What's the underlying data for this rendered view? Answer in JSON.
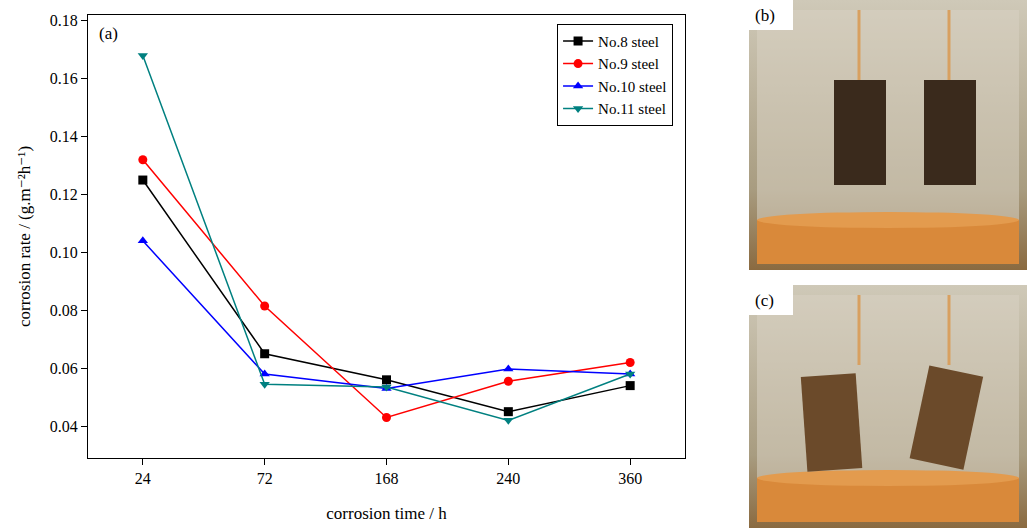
{
  "chart_data": {
    "type": "line",
    "x_label": "corrosion time / h",
    "y_label": "corrosion rate / (g.m⁻²h⁻¹)",
    "categories": [
      "24",
      "72",
      "168",
      "240",
      "360"
    ],
    "series": [
      {
        "name": "No.8 steel",
        "color": "#000000",
        "marker": "square",
        "values": [
          0.125,
          0.065,
          0.056,
          0.045,
          0.054
        ]
      },
      {
        "name": "No.9 steel",
        "color": "#ff0000",
        "marker": "circle",
        "values": [
          0.132,
          0.0815,
          0.043,
          0.0555,
          0.062
        ]
      },
      {
        "name": "No.10 steel",
        "color": "#0000ff",
        "marker": "triangle-up",
        "values": [
          0.104,
          0.058,
          0.053,
          0.0597,
          0.058
        ]
      },
      {
        "name": "No.11 steel",
        "color": "#008080",
        "marker": "triangle-down",
        "values": [
          0.168,
          0.0545,
          0.0535,
          0.042,
          0.058
        ]
      }
    ],
    "ylim": [
      0.029,
      0.182
    ],
    "yticks": [
      0.04,
      0.06,
      0.08,
      {
        "value": 0.1,
        "label": "0.10"
      },
      0.12,
      0.14,
      0.16,
      0.18
    ],
    "grid": false,
    "legend": "upper right",
    "annotations": [
      {
        "text": "(a)"
      }
    ]
  },
  "photos": [
    {
      "label": "(b)"
    },
    {
      "label": "(c)"
    }
  ]
}
